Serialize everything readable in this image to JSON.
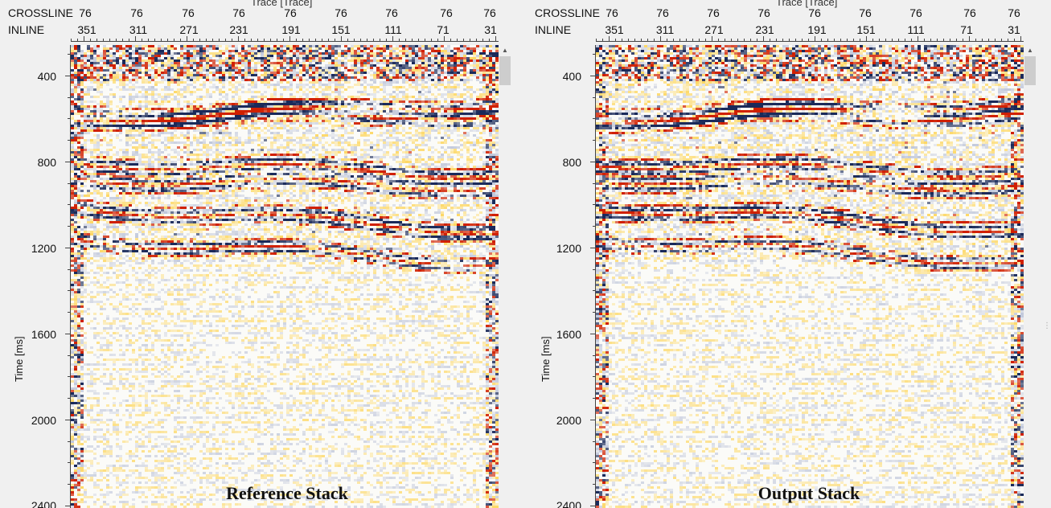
{
  "panels": [
    {
      "id": "left",
      "axis_title": "Trace [Trace]",
      "crossline_label": "CROSSLINE",
      "inline_label": "INLINE",
      "crossline_ticks": [
        "76",
        "76",
        "76",
        "76",
        "76",
        "76",
        "76",
        "76",
        "76"
      ],
      "inline_ticks": [
        "351",
        "311",
        "271",
        "231",
        "191",
        "151",
        "111",
        "71",
        "31"
      ],
      "y_title": "Time [ms]",
      "y_ticks": [
        "400",
        "800",
        "1200",
        "1600",
        "2000",
        "2400"
      ],
      "stack_title": "Reference Stack"
    },
    {
      "id": "right",
      "axis_title": "Trace [Trace]",
      "crossline_label": "CROSSLINE",
      "inline_label": "INLINE",
      "crossline_ticks": [
        "76",
        "76",
        "76",
        "76",
        "76",
        "76",
        "76",
        "76",
        "76"
      ],
      "inline_ticks": [
        "351",
        "311",
        "271",
        "231",
        "191",
        "151",
        "111",
        "71",
        "31"
      ],
      "y_title": "Time [ms]",
      "y_ticks": [
        "400",
        "800",
        "1200",
        "1600",
        "2000",
        "2400"
      ],
      "stack_title": "Output Stack"
    }
  ],
  "colors": {
    "positive": "#ffc000",
    "positive_strong": "#d02000",
    "negative": "#1a2a5a",
    "negative_soft": "#9aa6c8",
    "background": "#fbfbf8"
  }
}
